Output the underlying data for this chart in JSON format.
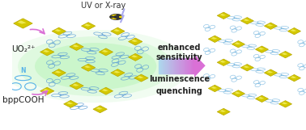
{
  "title": "",
  "bg_color": "#ffffff",
  "glow_color": "#90ee90",
  "arrow_color": "#da70d6",
  "arrow_label_top": "UV or X-ray",
  "arrow_label_right1": "enhanced",
  "arrow_label_right2": "sensitivity",
  "arrow_label_right3": "luminescence",
  "arrow_label_right4": "quenching",
  "uo2_label": "UO₂²⁺",
  "bpp_label": "bppCOOH",
  "uranyl_color": "#d4c800",
  "uranyl_edge": "#b8a800",
  "ligand_color_blue": "#6ab4f0",
  "ligand_color_gray": "#c0c0c0",
  "radiation_symbol_color": "#2a2a2a",
  "right_arrow_color_start": "#add8e6",
  "right_arrow_color_end": "#da70d6",
  "font_size_label": 7.5,
  "font_size_arrow_label": 7.0,
  "font_bold": "bold"
}
